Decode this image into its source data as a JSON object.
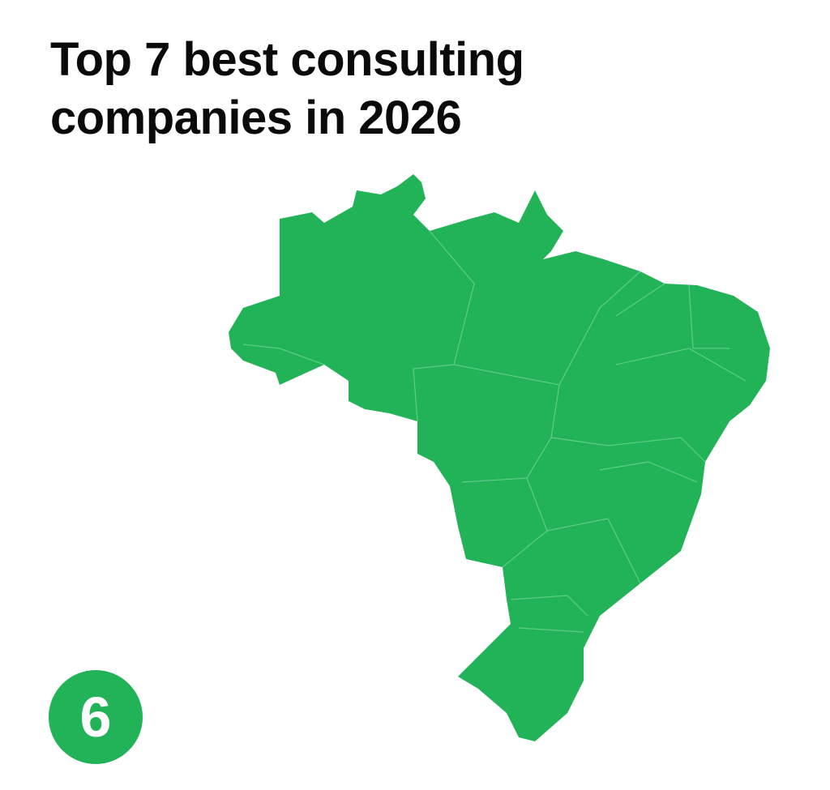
{
  "title": "Top 7 best consulting companies in 2026",
  "map": {
    "region": "Brazil",
    "fill_color": "#22b257",
    "border_color": "#6fd394"
  },
  "badge": {
    "number": "6",
    "color": "#22b257"
  }
}
